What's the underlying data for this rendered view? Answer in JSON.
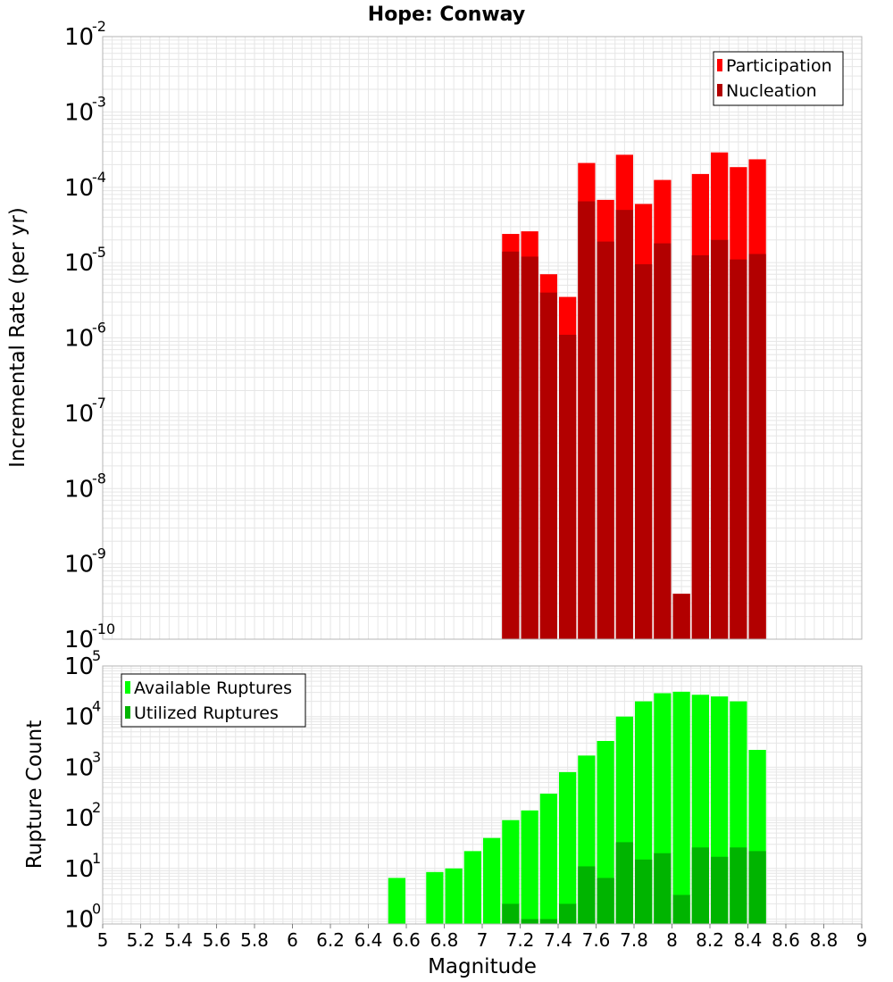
{
  "title": "Hope: Conway",
  "colors": {
    "participation": "#ff0000",
    "nucleation": "#b20000",
    "available": "#00ff00",
    "utilized": "#00b400",
    "grid": "#e6e6e6",
    "frame": "#b4b4b4"
  },
  "chart_data": [
    {
      "type": "bar",
      "title": "Hope: Conway",
      "xlabel": "",
      "ylabel": "Incremental Rate (per yr)",
      "y_scale": "log",
      "xlim": [
        5,
        9
      ],
      "ylim": [
        1e-10,
        0.01
      ],
      "y_ticks": [
        {
          "base": "10",
          "exp": "-10"
        },
        {
          "base": "10",
          "exp": "-9"
        },
        {
          "base": "10",
          "exp": "-8"
        },
        {
          "base": "10",
          "exp": "-7"
        },
        {
          "base": "10",
          "exp": "-6"
        },
        {
          "base": "10",
          "exp": "-5"
        },
        {
          "base": "10",
          "exp": "-4"
        },
        {
          "base": "10",
          "exp": "-3"
        },
        {
          "base": "10",
          "exp": "-2"
        }
      ],
      "legend_position": "top-right",
      "grid": true,
      "x": [
        7.15,
        7.25,
        7.35,
        7.45,
        7.55,
        7.65,
        7.75,
        7.85,
        7.95,
        8.05,
        8.15,
        8.25,
        8.35,
        8.45
      ],
      "series": [
        {
          "name": "Participation",
          "values": [
            2.4e-05,
            2.6e-05,
            7e-06,
            3.5e-06,
            0.00021,
            6.8e-05,
            0.00027,
            6e-05,
            0.000125,
            4e-10,
            0.00015,
            0.00029,
            0.000185,
            0.000235
          ]
        },
        {
          "name": "Nucleation",
          "values": [
            1.4e-05,
            1.2e-05,
            4e-06,
            1.1e-06,
            6.5e-05,
            1.9e-05,
            5e-05,
            9.5e-06,
            1.8e-05,
            4e-10,
            1.25e-05,
            2e-05,
            1.1e-05,
            1.3e-05
          ]
        }
      ]
    },
    {
      "type": "bar",
      "xlabel": "Magnitude",
      "ylabel": "Rupture Count",
      "y_scale": "log",
      "xlim": [
        5,
        9
      ],
      "ylim": [
        0.8,
        100000.0
      ],
      "y_ticks": [
        {
          "base": "10",
          "exp": "0"
        },
        {
          "base": "10",
          "exp": "1"
        },
        {
          "base": "10",
          "exp": "2"
        },
        {
          "base": "10",
          "exp": "3"
        },
        {
          "base": "10",
          "exp": "4"
        },
        {
          "base": "10",
          "exp": "5"
        }
      ],
      "x_ticks": [
        "5",
        "5.2",
        "5.4",
        "5.6",
        "5.8",
        "6",
        "6.2",
        "6.4",
        "6.6",
        "6.8",
        "7",
        "7.2",
        "7.4",
        "7.6",
        "7.8",
        "8",
        "8.2",
        "8.4",
        "8.6",
        "8.8",
        "9"
      ],
      "legend_position": "top-left",
      "grid": true,
      "x": [
        6.55,
        6.75,
        6.85,
        6.95,
        7.05,
        7.15,
        7.25,
        7.35,
        7.45,
        7.55,
        7.65,
        7.75,
        7.85,
        7.95,
        8.05,
        8.15,
        8.25,
        8.35,
        8.45
      ],
      "series": [
        {
          "name": "Available Ruptures",
          "values": [
            6.5,
            8.5,
            10,
            22,
            40,
            90,
            140,
            300,
            800,
            1700,
            3300,
            10000,
            20000,
            29000,
            31000,
            27000,
            25000,
            20000,
            2200
          ]
        },
        {
          "name": "Utilized Ruptures",
          "values": [
            0,
            0,
            0,
            0,
            0,
            2,
            1,
            1,
            2,
            11,
            6.5,
            33,
            15,
            20,
            3,
            26,
            17,
            26,
            22
          ]
        }
      ]
    }
  ]
}
